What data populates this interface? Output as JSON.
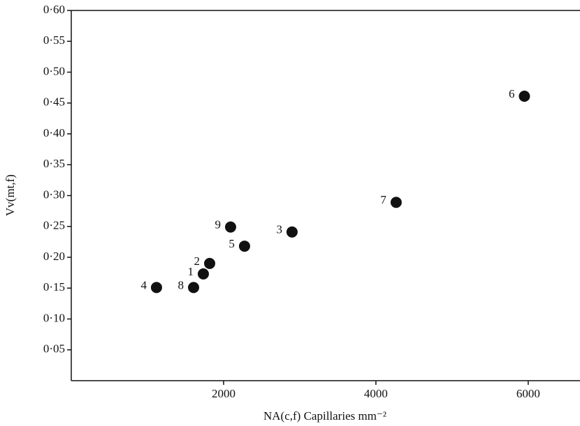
{
  "chart_data": {
    "type": "scatter",
    "x_label": "NA(c,f) Capillaries mm⁻²",
    "y_label": "Vv(mt,f)",
    "x": [
      1734,
      1817,
      2899,
      1119,
      2275,
      5950,
      4266,
      1606,
      2092
    ],
    "values": [
      0.173,
      0.19,
      0.241,
      0.151,
      0.218,
      0.461,
      0.289,
      0.151,
      0.249
    ],
    "labels": [
      "1",
      "2",
      "3",
      "4",
      "5",
      "6",
      "7",
      "8",
      "9"
    ],
    "color": "#111111",
    "xlim": [
      0,
      6680
    ],
    "ylim": [
      0,
      0.6
    ],
    "xticks": [
      2000,
      4000,
      6000
    ],
    "yticks": [
      {
        "value": 0.05,
        "label": "0·05"
      },
      {
        "value": 0.1,
        "label": "0·10"
      },
      {
        "value": 0.15,
        "label": "0·15"
      },
      {
        "value": 0.2,
        "label": "0·20"
      },
      {
        "value": 0.25,
        "label": "0·25"
      },
      {
        "value": 0.3,
        "label": "0·30"
      },
      {
        "value": 0.35,
        "label": "0·35"
      },
      {
        "value": 0.4,
        "label": "0·40"
      },
      {
        "value": 0.45,
        "label": "0·45"
      },
      {
        "value": 0.5,
        "label": "0·50"
      },
      {
        "value": 0.55,
        "label": "0·55"
      },
      {
        "value": 0.6,
        "label": "0·60"
      }
    ]
  }
}
